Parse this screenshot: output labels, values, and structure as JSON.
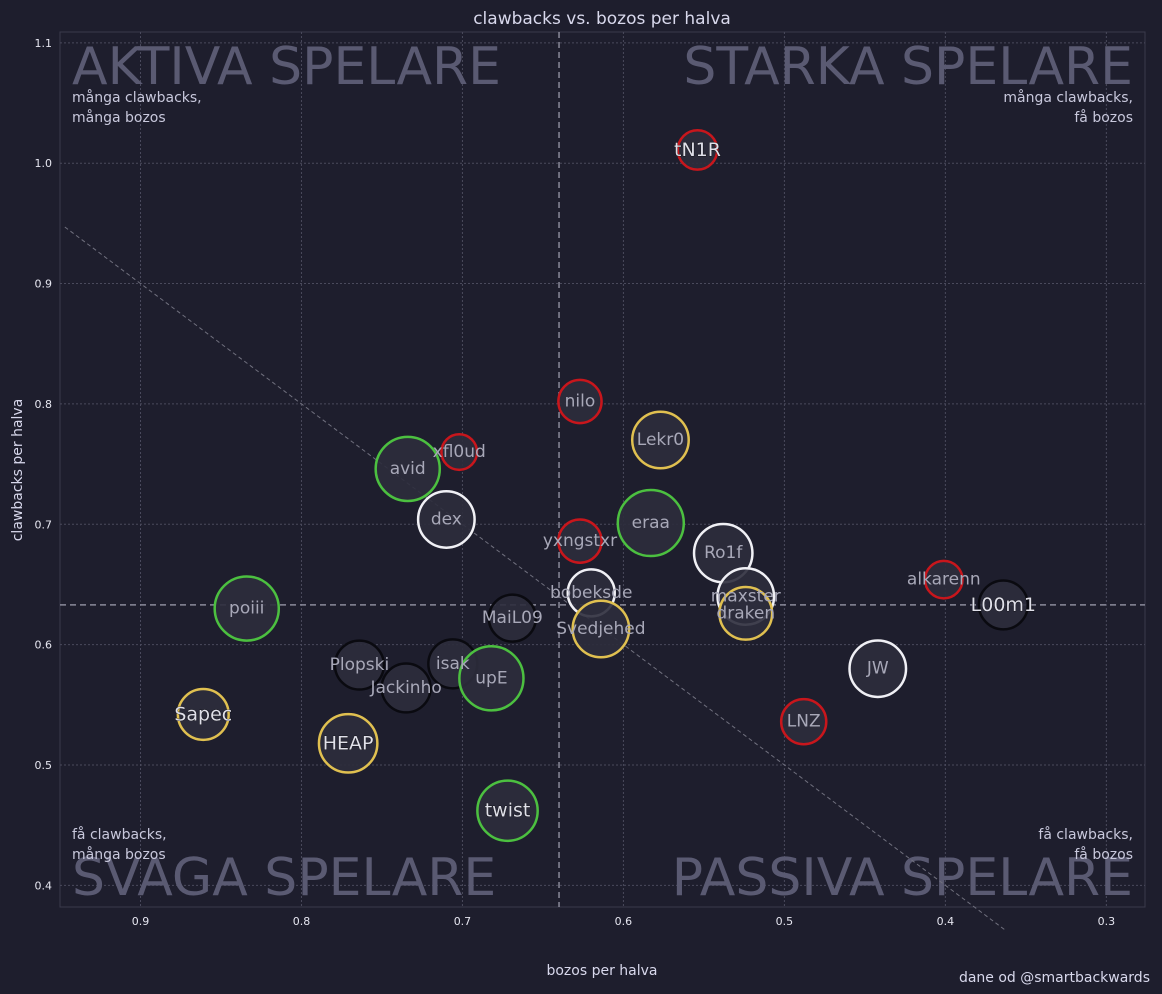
{
  "chart_data": {
    "type": "scatter",
    "title": "clawbacks vs. bozos per halva",
    "xlabel": "bozos per halva",
    "ylabel": "clawbacks per halva",
    "credit": "dane od @smartbackwards",
    "xlim": [
      0.95,
      0.276
    ],
    "ylim": [
      0.382,
      1.109
    ],
    "x_reversed": true,
    "grid": true,
    "xticks": [
      "0.9",
      "0.8",
      "0.7",
      "0.6",
      "0.5",
      "0.4",
      "0.3"
    ],
    "yticks": [
      "0.4",
      "0.5",
      "0.6",
      "0.7",
      "0.8",
      "0.9",
      "1.0",
      "1.1"
    ],
    "mean_x": 0.64,
    "mean_y": 0.633,
    "diagonal": "y = x",
    "quadrants": {
      "tl": {
        "title": "AKTIVA SPELARE",
        "sub": [
          "många clawbacks,",
          "många bozos"
        ]
      },
      "tr": {
        "title": "STARKA SPELARE",
        "sub": [
          "många clawbacks,",
          "få bozos"
        ]
      },
      "bl": {
        "title": "SVAGA SPELARE",
        "sub": [
          "få clawbacks,",
          "många bozos"
        ]
      },
      "br": {
        "title": "PASSIVA SPELARE",
        "sub": [
          "få clawbacks,",
          "få bozos"
        ]
      }
    },
    "colors": {
      "background": "#1e1e2d",
      "marker_fill": "#2c2c3c",
      "red": "#c8161c",
      "yellow": "#e0c050",
      "green": "#4cc040",
      "white": "#f0f0f5",
      "black": "#0a0a10"
    },
    "points": [
      {
        "name": "tN1R",
        "x": 0.554,
        "y": 1.011,
        "color": "red",
        "size": 0.3,
        "highlight": true
      },
      {
        "name": "nilo",
        "x": 0.627,
        "y": 0.802,
        "color": "red",
        "size": 0.4
      },
      {
        "name": "Lekr0",
        "x": 0.577,
        "y": 0.77,
        "color": "yellow",
        "size": 0.75
      },
      {
        "name": "xfl0ud",
        "x": 0.702,
        "y": 0.76,
        "color": "red",
        "size": 0.2
      },
      {
        "name": "avid",
        "x": 0.734,
        "y": 0.746,
        "color": "green",
        "size": 0.95
      },
      {
        "name": "dex",
        "x": 0.71,
        "y": 0.704,
        "color": "white",
        "size": 0.75
      },
      {
        "name": "eraa",
        "x": 0.583,
        "y": 0.701,
        "color": "green",
        "size": 1.0
      },
      {
        "name": "yxngstxr",
        "x": 0.627,
        "y": 0.686,
        "color": "red",
        "size": 0.4
      },
      {
        "name": "Ro1f",
        "x": 0.538,
        "y": 0.676,
        "color": "white",
        "size": 0.8
      },
      {
        "name": "alkarenn",
        "x": 0.401,
        "y": 0.654,
        "color": "red",
        "size": 0.25
      },
      {
        "name": "bobeksde",
        "x": 0.62,
        "y": 0.643,
        "color": "white",
        "size": 0.5
      },
      {
        "name": "maxster",
        "x": 0.524,
        "y": 0.64,
        "color": "white",
        "size": 0.75
      },
      {
        "name": "draken",
        "x": 0.524,
        "y": 0.626,
        "color": "yellow",
        "size": 0.65
      },
      {
        "name": "L00m1",
        "x": 0.364,
        "y": 0.633,
        "color": "black",
        "size": 0.55,
        "highlight": true
      },
      {
        "name": "poiii",
        "x": 0.834,
        "y": 0.63,
        "color": "green",
        "size": 0.95
      },
      {
        "name": "MaiL09",
        "x": 0.669,
        "y": 0.622,
        "color": "black",
        "size": 0.5
      },
      {
        "name": "Svedjehed",
        "x": 0.614,
        "y": 0.613,
        "color": "yellow",
        "size": 0.75
      },
      {
        "name": "Plopski",
        "x": 0.764,
        "y": 0.583,
        "color": "black",
        "size": 0.55
      },
      {
        "name": "isak",
        "x": 0.706,
        "y": 0.584,
        "color": "black",
        "size": 0.55
      },
      {
        "name": "upE",
        "x": 0.682,
        "y": 0.572,
        "color": "green",
        "size": 0.95
      },
      {
        "name": "JW",
        "x": 0.442,
        "y": 0.58,
        "color": "white",
        "size": 0.75
      },
      {
        "name": "Jackinho",
        "x": 0.735,
        "y": 0.564,
        "color": "black",
        "size": 0.55
      },
      {
        "name": "Sapec",
        "x": 0.861,
        "y": 0.542,
        "color": "yellow",
        "size": 0.6,
        "highlight": true
      },
      {
        "name": "LNZ",
        "x": 0.488,
        "y": 0.536,
        "color": "red",
        "size": 0.45
      },
      {
        "name": "HEAP",
        "x": 0.771,
        "y": 0.518,
        "color": "yellow",
        "size": 0.8,
        "highlight": true
      },
      {
        "name": "twist",
        "x": 0.672,
        "y": 0.462,
        "color": "green",
        "size": 0.85,
        "highlight": true
      }
    ]
  }
}
